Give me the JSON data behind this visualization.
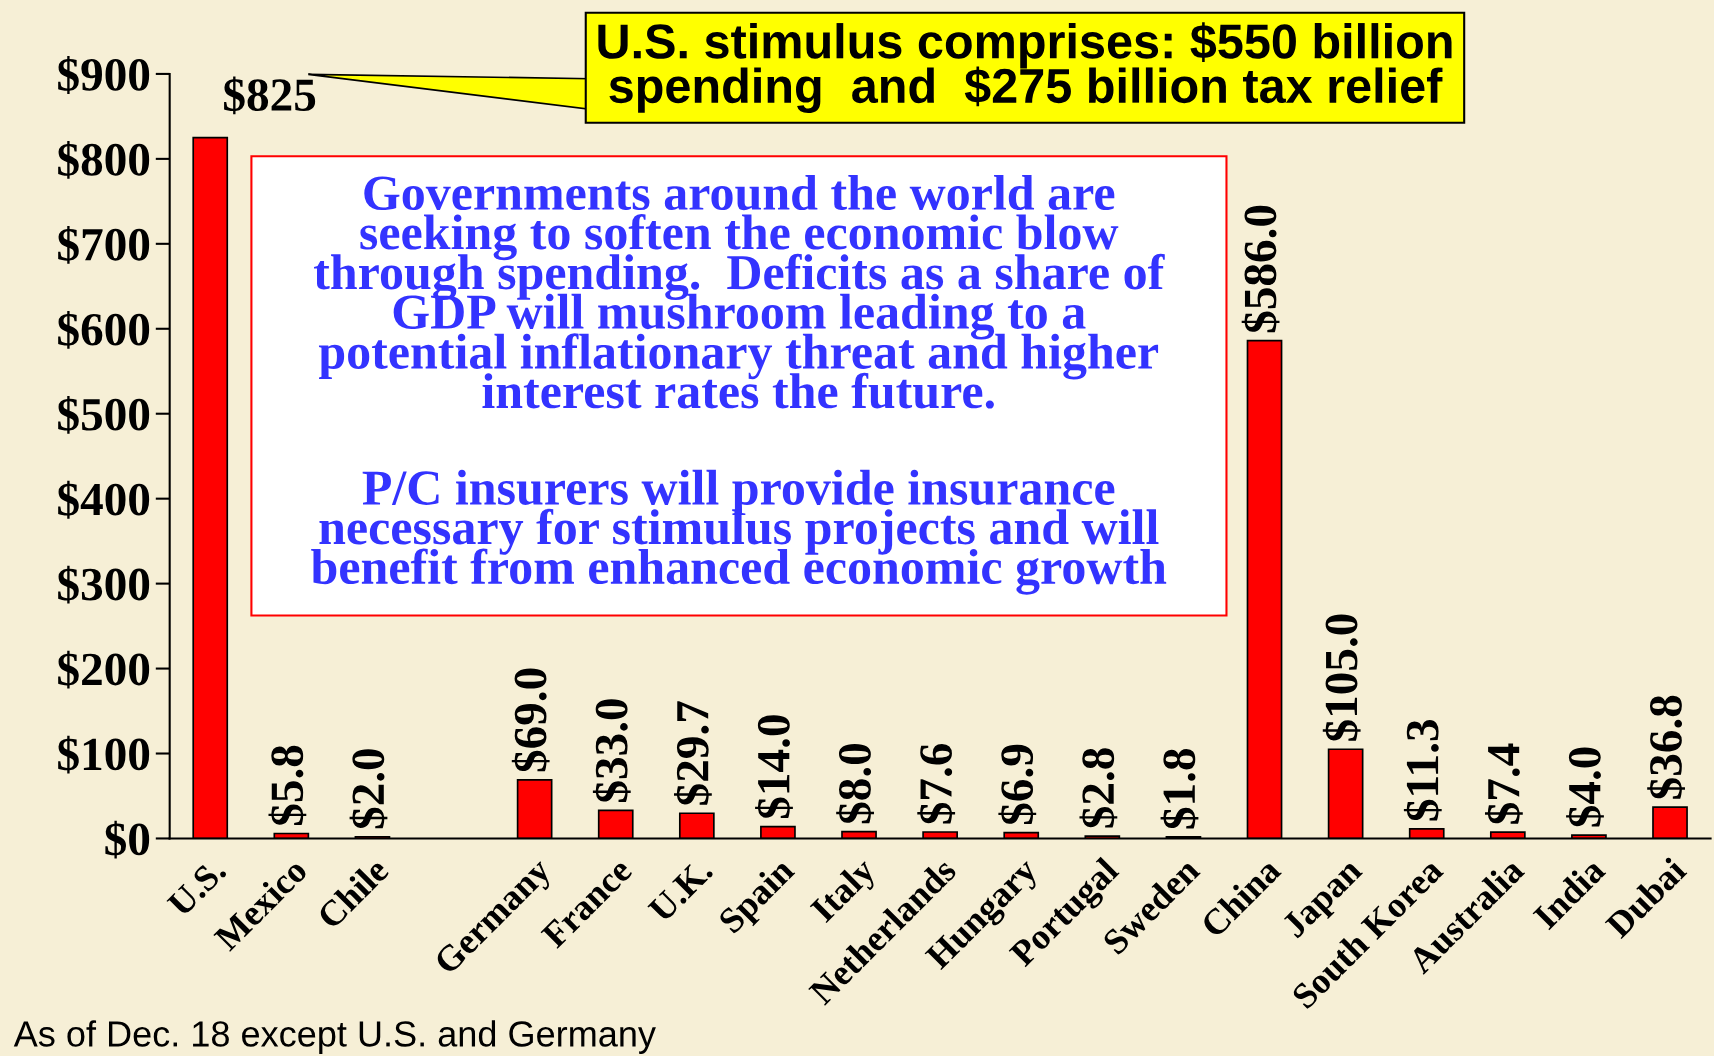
{
  "chart_data": {
    "type": "bar",
    "categories": [
      "U.S.",
      "Mexico",
      "Chile",
      null,
      "Germany",
      "France",
      "U.K.",
      "Spain",
      "Italy",
      "Netherlands",
      "Hungary",
      "Portugal",
      "Sweden",
      "China",
      "Japan",
      "South Korea",
      "Australia",
      "India",
      "Dubai"
    ],
    "values": [
      825,
      5.8,
      2.0,
      null,
      69.0,
      33.0,
      29.7,
      14.0,
      8.0,
      7.6,
      6.9,
      2.8,
      1.8,
      586.0,
      105.0,
      11.3,
      7.4,
      4.0,
      36.8
    ],
    "value_labels": [
      "$825",
      "$5.8",
      "$2.0",
      null,
      "$69.0",
      "$33.0",
      "$29.7",
      "$14.0",
      "$8.0",
      "$7.6",
      "$6.9",
      "$2.8",
      "$1.8",
      "$586.0",
      "$105.0",
      "$11.3",
      "$7.4",
      "$4.0",
      "$36.8"
    ],
    "color": "#ff0000",
    "ylim": [
      0,
      900
    ],
    "yticks": [
      {
        "value": 0,
        "label": "$0"
      },
      {
        "value": 100,
        "label": "$100"
      },
      {
        "value": 200,
        "label": "$200"
      },
      {
        "value": 300,
        "label": "$300"
      },
      {
        "value": 400,
        "label": "$400"
      },
      {
        "value": 500,
        "label": "$500"
      },
      {
        "value": 600,
        "label": "$600"
      },
      {
        "value": 700,
        "label": "$700"
      },
      {
        "value": 800,
        "label": "$800"
      },
      {
        "value": 900,
        "label": "$900"
      }
    ],
    "grid": false,
    "legend": false,
    "annotations": [
      "U.S. stimulus comprises: $550 billion\nspending  and  $275 billion tax relief",
      "Governments around the world are\nseeking to soften the economic blow\nthrough spending.  Deficits as a share of\nGDP will mushroom leading to a\npotential inflationary threat and higher\ninterest rates the future.",
      "P/C insurers will provide insurance\nnecessary for stimulus projects and will\nbenefit from enhanced economic growth",
      "As of Dec. 18 except U.S. and Germany"
    ]
  }
}
